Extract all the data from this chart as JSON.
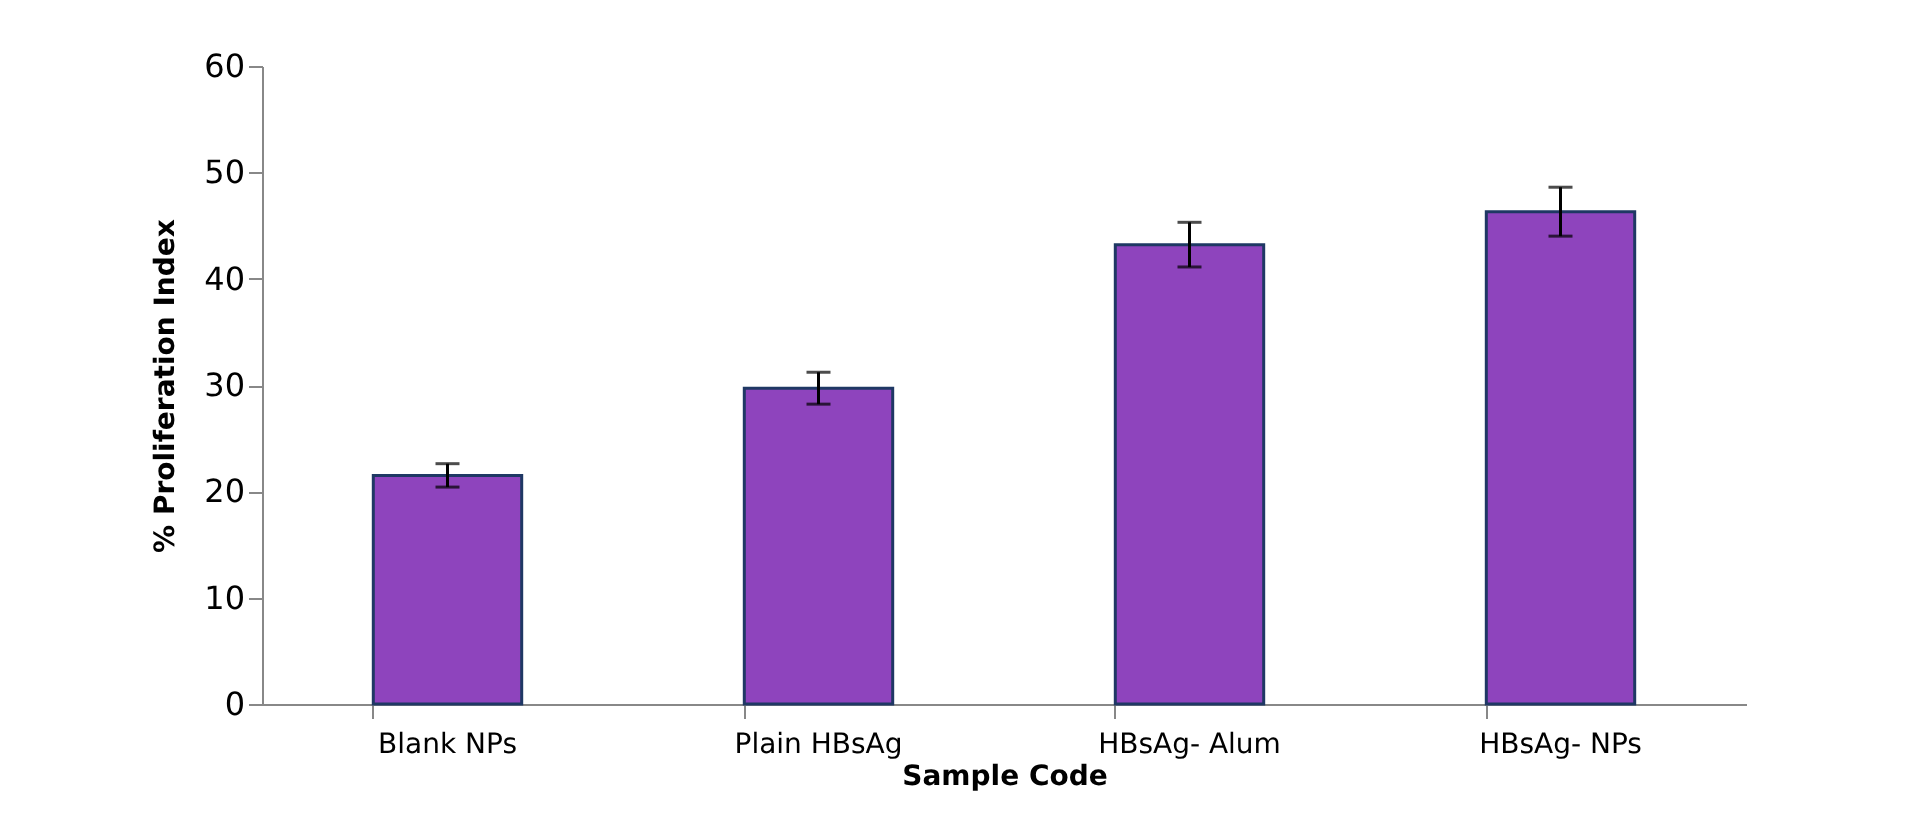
{
  "chart_data": {
    "type": "bar",
    "xlabel": "Sample Code",
    "ylabel": "% Proliferation Index",
    "categories": [
      "Blank NPs",
      "Plain HBsAg",
      "HBsAg- Alum",
      "HBsAg- NPs"
    ],
    "values": [
      21.5,
      29.7,
      43.2,
      46.3
    ],
    "errors": [
      1.1,
      1.5,
      2.1,
      2.3
    ],
    "color": "#8e44bd",
    "ylim": [
      0,
      60
    ],
    "yticks": [
      0,
      10,
      20,
      30,
      40,
      50,
      60
    ],
    "grid": false
  }
}
